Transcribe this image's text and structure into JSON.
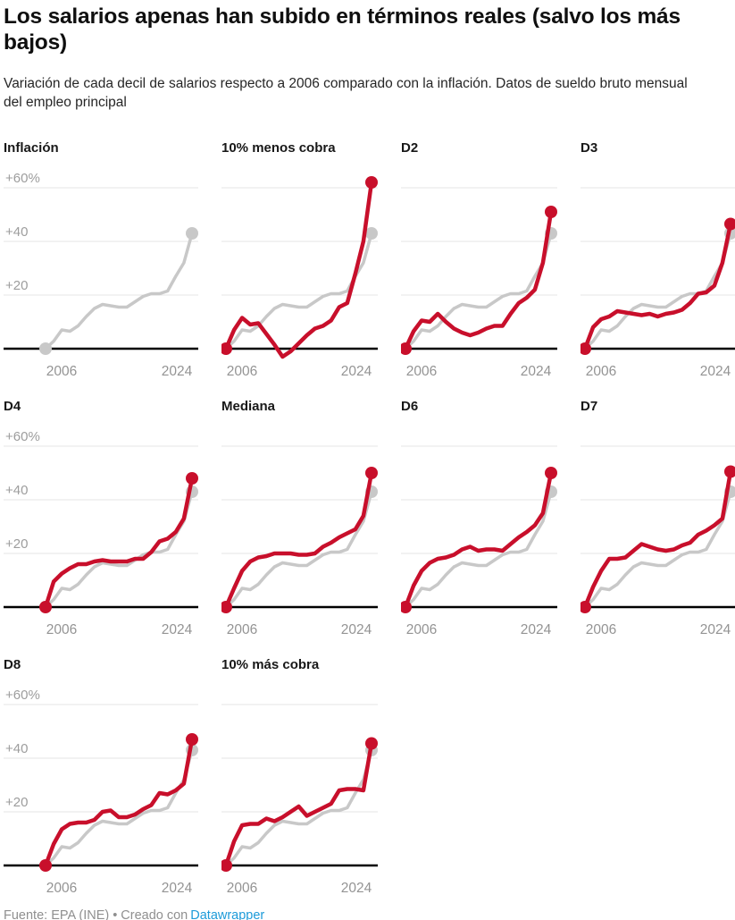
{
  "header": {
    "title": "Los salarios apenas han subido en términos reales (salvo los más bajos)",
    "subtitle": "Variación de cada decil de salarios respecto a 2006 comparado con la inflación. Datos de sueldo bruto mensual del empleo principal"
  },
  "footer": {
    "source_text": "Fuente: EPA (INE)",
    "separator": "•",
    "credit_text": "Creado con",
    "credit_link_label": "Datawrapper"
  },
  "colors": {
    "accent_red": "#c80f2b",
    "inflation_gray": "#c8c8c8",
    "grid_gray": "#e4e4e4",
    "axis_black": "#000000",
    "y_label_gray": "#9d9d9d",
    "x_label_gray": "#949494",
    "link_blue": "#1d9bd9"
  },
  "chart_data": {
    "type": "line",
    "layout": "small-multiples",
    "grid": "horizontal gridlines at +20/+40/+60, bold black zero baseline",
    "x": [
      2006,
      2007,
      2008,
      2009,
      2010,
      2011,
      2012,
      2013,
      2014,
      2015,
      2016,
      2017,
      2018,
      2019,
      2020,
      2021,
      2022,
      2023,
      2024
    ],
    "x_first_label": "2006",
    "x_last_label": "2024",
    "y_ticks": [
      "+60%",
      "+40",
      "+20"
    ],
    "y_tick_values": [
      60,
      40,
      20
    ],
    "ylim": [
      -5,
      65
    ],
    "unit": "% variación acumulada desde 2006",
    "inflation_series": {
      "name": "Inflación",
      "color": "#c8c8c8",
      "values": [
        0,
        2.8,
        7,
        6.5,
        8.5,
        12,
        15,
        16.5,
        16,
        15.5,
        15.5,
        17.5,
        19.5,
        20.5,
        20.5,
        21.5,
        27,
        32,
        43
      ]
    },
    "charts": [
      {
        "title": "Inflación",
        "show_y_labels": true,
        "series_ref": "inflation_series"
      },
      {
        "title": "10% menos cobra",
        "show_y_labels": false,
        "values": [
          0,
          7,
          11.5,
          9,
          9.5,
          5.5,
          1.5,
          -3,
          -1,
          2,
          5,
          7.5,
          8.5,
          10.5,
          15.5,
          17,
          28,
          40,
          62
        ]
      },
      {
        "title": "D2",
        "show_y_labels": false,
        "values": [
          0,
          6.5,
          10.5,
          10,
          13,
          10,
          7.5,
          6,
          5,
          6,
          7.5,
          8.5,
          8.5,
          13,
          17,
          19,
          22,
          32,
          51
        ]
      },
      {
        "title": "D3",
        "show_y_labels": false,
        "values": [
          0,
          8,
          11,
          12,
          14,
          13.5,
          13,
          12.5,
          13,
          12,
          13,
          13.5,
          14.5,
          17,
          20.5,
          21,
          23.5,
          32,
          46.5
        ]
      },
      {
        "title": "D4",
        "show_y_labels": true,
        "values": [
          0,
          9.5,
          12.5,
          14.5,
          16,
          16,
          17,
          17.5,
          17,
          17,
          17,
          18,
          18,
          20.5,
          24.5,
          25.5,
          28,
          33,
          48
        ]
      },
      {
        "title": "Mediana",
        "show_y_labels": false,
        "values": [
          0,
          7,
          13.5,
          17,
          18.5,
          19,
          20,
          20,
          20,
          19.5,
          19.5,
          20,
          22.5,
          24,
          26,
          27.5,
          29,
          34,
          50
        ]
      },
      {
        "title": "D6",
        "show_y_labels": false,
        "values": [
          0,
          8,
          13.5,
          16.5,
          18,
          18.5,
          19.5,
          21.5,
          22.5,
          21,
          21.5,
          21.5,
          21,
          23.5,
          26,
          28,
          30.5,
          35,
          50
        ]
      },
      {
        "title": "D7",
        "show_y_labels": false,
        "values": [
          0,
          7.5,
          13.5,
          18,
          18,
          18.5,
          21,
          23.5,
          22.5,
          21.5,
          21,
          21.5,
          23,
          24,
          27,
          28.5,
          30.5,
          33,
          50.5
        ]
      },
      {
        "title": "D8",
        "show_y_labels": true,
        "values": [
          0,
          8,
          13.5,
          15.5,
          16,
          16,
          17,
          20,
          20.5,
          18,
          18,
          19,
          21,
          22.5,
          27,
          26.5,
          28,
          30.5,
          47
        ]
      },
      {
        "title": "10% más cobra",
        "show_y_labels": false,
        "values": [
          0,
          9,
          15,
          15.5,
          15.5,
          17.5,
          16.5,
          18,
          20,
          22,
          18.5,
          20,
          21.5,
          23,
          28,
          28.5,
          28.5,
          28,
          45.5
        ]
      }
    ]
  }
}
